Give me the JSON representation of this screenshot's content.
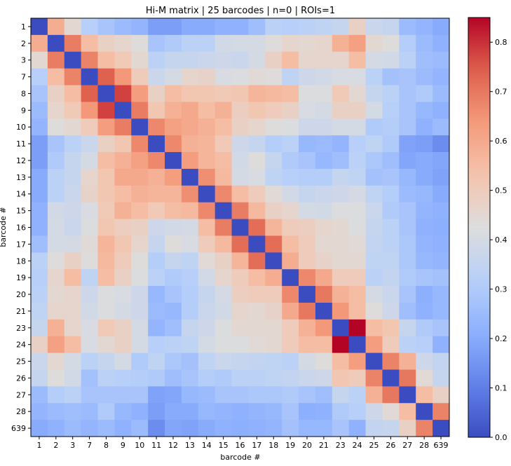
{
  "chart_data": {
    "type": "heatmap",
    "title": "Hi-M matrix | 25 barcodes | n=0 | ROIs=1",
    "xlabel": "barcode #",
    "ylabel": "barcode #",
    "colorbar_label": "",
    "colormap": "coolwarm",
    "vmin": 0.0,
    "vmax": 0.85,
    "colorbar_ticks": [
      "0.0",
      "0.1",
      "0.2",
      "0.3",
      "0.4",
      "0.5",
      "0.6",
      "0.7",
      "0.8"
    ],
    "categories": [
      "1",
      "2",
      "3",
      "7",
      "8",
      "9",
      "10",
      "11",
      "12",
      "13",
      "14",
      "15",
      "16",
      "17",
      "18",
      "19",
      "20",
      "21",
      "23",
      "24",
      "25",
      "26",
      "27",
      "28",
      "639"
    ],
    "values": [
      [
        0.0,
        0.59,
        0.45,
        0.32,
        0.28,
        0.25,
        0.23,
        0.17,
        0.17,
        0.2,
        0.2,
        0.22,
        0.22,
        0.26,
        0.33,
        0.32,
        0.33,
        0.34,
        0.36,
        0.48,
        0.37,
        0.36,
        0.25,
        0.23,
        0.2
      ],
      [
        0.59,
        0.0,
        0.69,
        0.55,
        0.48,
        0.46,
        0.43,
        0.28,
        0.3,
        0.33,
        0.33,
        0.39,
        0.4,
        0.4,
        0.43,
        0.46,
        0.45,
        0.46,
        0.58,
        0.62,
        0.45,
        0.43,
        0.31,
        0.25,
        0.22
      ],
      [
        0.45,
        0.69,
        0.0,
        0.68,
        0.55,
        0.51,
        0.45,
        0.33,
        0.36,
        0.36,
        0.37,
        0.38,
        0.37,
        0.4,
        0.48,
        0.55,
        0.46,
        0.46,
        0.46,
        0.55,
        0.4,
        0.39,
        0.33,
        0.26,
        0.25
      ],
      [
        0.32,
        0.55,
        0.68,
        0.0,
        0.74,
        0.64,
        0.5,
        0.37,
        0.4,
        0.46,
        0.47,
        0.41,
        0.42,
        0.44,
        0.43,
        0.34,
        0.38,
        0.39,
        0.41,
        0.41,
        0.33,
        0.27,
        0.28,
        0.25,
        0.23
      ],
      [
        0.28,
        0.48,
        0.55,
        0.74,
        0.0,
        0.78,
        0.63,
        0.48,
        0.55,
        0.52,
        0.52,
        0.51,
        0.52,
        0.57,
        0.56,
        0.55,
        0.42,
        0.42,
        0.51,
        0.45,
        0.36,
        0.33,
        0.28,
        0.3,
        0.25
      ],
      [
        0.25,
        0.46,
        0.51,
        0.64,
        0.78,
        0.0,
        0.69,
        0.52,
        0.58,
        0.6,
        0.55,
        0.58,
        0.49,
        0.52,
        0.5,
        0.48,
        0.41,
        0.4,
        0.48,
        0.48,
        0.4,
        0.32,
        0.28,
        0.24,
        0.22
      ],
      [
        0.23,
        0.43,
        0.45,
        0.5,
        0.63,
        0.69,
        0.0,
        0.67,
        0.62,
        0.6,
        0.58,
        0.55,
        0.48,
        0.46,
        0.43,
        0.42,
        0.38,
        0.38,
        0.4,
        0.4,
        0.3,
        0.31,
        0.28,
        0.22,
        0.25
      ],
      [
        0.17,
        0.28,
        0.33,
        0.37,
        0.48,
        0.52,
        0.67,
        0.0,
        0.67,
        0.58,
        0.57,
        0.51,
        0.38,
        0.36,
        0.31,
        0.33,
        0.24,
        0.25,
        0.23,
        0.32,
        0.34,
        0.3,
        0.18,
        0.17,
        0.13
      ],
      [
        0.17,
        0.3,
        0.36,
        0.4,
        0.55,
        0.58,
        0.62,
        0.67,
        0.0,
        0.63,
        0.57,
        0.55,
        0.39,
        0.43,
        0.36,
        0.3,
        0.28,
        0.24,
        0.26,
        0.33,
        0.29,
        0.26,
        0.19,
        0.2,
        0.19
      ],
      [
        0.2,
        0.33,
        0.36,
        0.46,
        0.52,
        0.6,
        0.6,
        0.58,
        0.63,
        0.0,
        0.66,
        0.56,
        0.4,
        0.41,
        0.34,
        0.32,
        0.31,
        0.31,
        0.36,
        0.34,
        0.27,
        0.28,
        0.24,
        0.2,
        0.18
      ],
      [
        0.2,
        0.33,
        0.37,
        0.47,
        0.52,
        0.55,
        0.58,
        0.57,
        0.57,
        0.66,
        0.0,
        0.67,
        0.55,
        0.5,
        0.44,
        0.39,
        0.36,
        0.37,
        0.38,
        0.4,
        0.34,
        0.31,
        0.25,
        0.24,
        0.2
      ],
      [
        0.22,
        0.39,
        0.38,
        0.41,
        0.51,
        0.58,
        0.55,
        0.51,
        0.55,
        0.56,
        0.67,
        0.0,
        0.69,
        0.56,
        0.48,
        0.46,
        0.4,
        0.39,
        0.42,
        0.42,
        0.37,
        0.3,
        0.28,
        0.23,
        0.22
      ],
      [
        0.22,
        0.4,
        0.37,
        0.42,
        0.52,
        0.49,
        0.48,
        0.38,
        0.39,
        0.4,
        0.55,
        0.69,
        0.0,
        0.72,
        0.57,
        0.5,
        0.49,
        0.46,
        0.45,
        0.42,
        0.36,
        0.33,
        0.28,
        0.22,
        0.21
      ],
      [
        0.26,
        0.4,
        0.4,
        0.44,
        0.57,
        0.52,
        0.46,
        0.36,
        0.43,
        0.41,
        0.5,
        0.56,
        0.72,
        0.0,
        0.72,
        0.55,
        0.5,
        0.45,
        0.45,
        0.44,
        0.35,
        0.33,
        0.29,
        0.23,
        0.22
      ],
      [
        0.33,
        0.43,
        0.48,
        0.43,
        0.56,
        0.5,
        0.43,
        0.31,
        0.36,
        0.34,
        0.44,
        0.48,
        0.57,
        0.72,
        0.0,
        0.59,
        0.5,
        0.47,
        0.45,
        0.45,
        0.34,
        0.34,
        0.29,
        0.24,
        0.23
      ],
      [
        0.32,
        0.46,
        0.55,
        0.34,
        0.55,
        0.48,
        0.42,
        0.33,
        0.3,
        0.32,
        0.39,
        0.46,
        0.5,
        0.55,
        0.59,
        0.0,
        0.67,
        0.6,
        0.5,
        0.5,
        0.33,
        0.35,
        0.3,
        0.28,
        0.27
      ],
      [
        0.33,
        0.45,
        0.46,
        0.38,
        0.42,
        0.41,
        0.38,
        0.24,
        0.28,
        0.31,
        0.36,
        0.4,
        0.49,
        0.5,
        0.5,
        0.67,
        0.0,
        0.7,
        0.58,
        0.55,
        0.4,
        0.37,
        0.28,
        0.21,
        0.24
      ],
      [
        0.34,
        0.46,
        0.46,
        0.39,
        0.42,
        0.4,
        0.38,
        0.25,
        0.24,
        0.31,
        0.37,
        0.39,
        0.46,
        0.45,
        0.47,
        0.6,
        0.7,
        0.0,
        0.64,
        0.55,
        0.43,
        0.38,
        0.26,
        0.22,
        0.24
      ],
      [
        0.36,
        0.58,
        0.46,
        0.41,
        0.51,
        0.48,
        0.4,
        0.23,
        0.26,
        0.36,
        0.38,
        0.42,
        0.45,
        0.45,
        0.45,
        0.5,
        0.58,
        0.64,
        0.0,
        0.85,
        0.55,
        0.52,
        0.36,
        0.3,
        0.28
      ],
      [
        0.48,
        0.62,
        0.55,
        0.41,
        0.45,
        0.48,
        0.4,
        0.32,
        0.33,
        0.34,
        0.4,
        0.42,
        0.42,
        0.44,
        0.45,
        0.5,
        0.55,
        0.55,
        0.85,
        0.0,
        0.63,
        0.5,
        0.33,
        0.32,
        0.22
      ],
      [
        0.37,
        0.45,
        0.4,
        0.33,
        0.36,
        0.4,
        0.3,
        0.34,
        0.29,
        0.27,
        0.34,
        0.37,
        0.36,
        0.35,
        0.34,
        0.33,
        0.4,
        0.43,
        0.55,
        0.63,
        0.0,
        0.68,
        0.58,
        0.38,
        0.35
      ],
      [
        0.36,
        0.43,
        0.39,
        0.27,
        0.33,
        0.32,
        0.31,
        0.3,
        0.26,
        0.28,
        0.31,
        0.3,
        0.33,
        0.33,
        0.34,
        0.35,
        0.37,
        0.38,
        0.52,
        0.5,
        0.68,
        0.0,
        0.7,
        0.44,
        0.36
      ],
      [
        0.25,
        0.31,
        0.33,
        0.28,
        0.28,
        0.28,
        0.28,
        0.18,
        0.19,
        0.24,
        0.25,
        0.28,
        0.28,
        0.29,
        0.29,
        0.3,
        0.28,
        0.26,
        0.36,
        0.33,
        0.58,
        0.7,
        0.0,
        0.55,
        0.48
      ],
      [
        0.23,
        0.25,
        0.26,
        0.25,
        0.3,
        0.24,
        0.22,
        0.17,
        0.2,
        0.2,
        0.24,
        0.23,
        0.22,
        0.23,
        0.24,
        0.28,
        0.21,
        0.22,
        0.3,
        0.32,
        0.38,
        0.44,
        0.55,
        0.0,
        0.68
      ],
      [
        0.2,
        0.22,
        0.25,
        0.23,
        0.25,
        0.22,
        0.25,
        0.13,
        0.19,
        0.18,
        0.2,
        0.22,
        0.21,
        0.22,
        0.23,
        0.27,
        0.24,
        0.24,
        0.28,
        0.22,
        0.35,
        0.36,
        0.48,
        0.68,
        0.0
      ]
    ]
  }
}
